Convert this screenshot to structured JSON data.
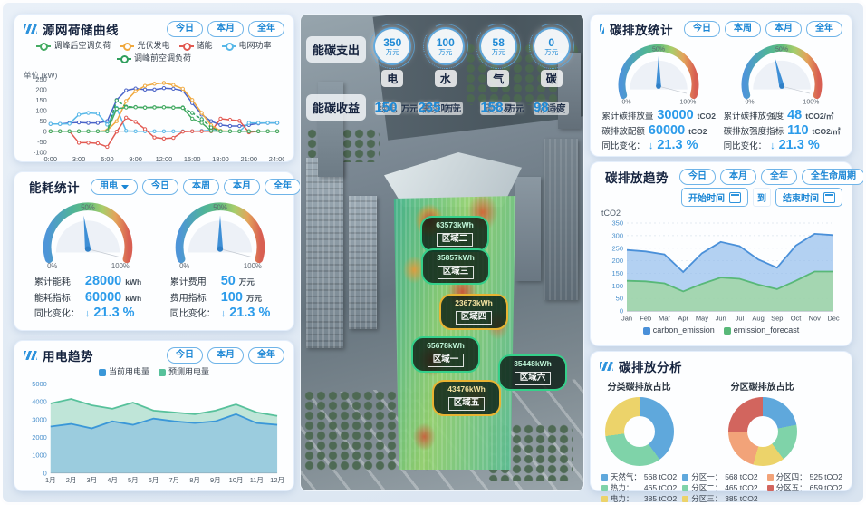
{
  "left": {
    "curve_panel": {
      "title": "源网荷储曲线",
      "buttons": [
        "今日",
        "本月",
        "全年"
      ],
      "unit_label": "单位 (kW)"
    },
    "energy_panel": {
      "title": "能耗统计",
      "dropdown_label": "用电",
      "buttons": [
        "今日",
        "本周",
        "本月",
        "全年"
      ],
      "gauges": [
        {
          "rows": [
            {
              "label": "累计能耗",
              "value": "28000",
              "unit": "kWh"
            },
            {
              "label": "能耗指标",
              "value": "60000",
              "unit": "kWh"
            },
            {
              "label": "同比变化：",
              "arrow": "↓",
              "value": "21.3 %",
              "unit": ""
            }
          ]
        },
        {
          "rows": [
            {
              "label": "累计费用",
              "value": "50",
              "unit": "万元"
            },
            {
              "label": "费用指标",
              "value": "100",
              "unit": "万元"
            },
            {
              "label": "同比变化：",
              "arrow": "↓",
              "value": "21.3 %",
              "unit": ""
            }
          ]
        }
      ]
    },
    "trend_panel": {
      "title": "用电趋势",
      "buttons": [
        "今日",
        "本月",
        "全年"
      ]
    }
  },
  "center": {
    "expense_label": "能碳支出",
    "expense_items": [
      {
        "value": "350",
        "unit": "万元",
        "name": "电"
      },
      {
        "value": "100",
        "unit": "万元",
        "name": "水"
      },
      {
        "value": "58",
        "unit": "万元",
        "name": "气"
      },
      {
        "value": "0",
        "unit": "万元",
        "name": "碳"
      }
    ],
    "revenue_label": "能碳收益",
    "revenue_items": [
      {
        "value": "150",
        "unit": "万元",
        "name": "绿电"
      },
      {
        "value": "235",
        "unit": "万元",
        "name": "需求响应"
      },
      {
        "value": "158",
        "unit": "万元",
        "name": "碳交易"
      },
      {
        "value": "98",
        "unit": "%",
        "name": "舒适度"
      }
    ],
    "zones": [
      {
        "value": "63573kWh",
        "name": "区域二"
      },
      {
        "value": "35857kWh",
        "name": "区域三"
      },
      {
        "value": "23673kWh",
        "name": "区域四"
      },
      {
        "value": "65678kWh",
        "name": "区域一"
      },
      {
        "value": "35448kWh",
        "name": "区域六"
      },
      {
        "value": "43476kWh",
        "name": "区域五"
      }
    ]
  },
  "right": {
    "stats_panel": {
      "title": "碳排放统计",
      "buttons": [
        "今日",
        "本周",
        "本月",
        "全年"
      ],
      "gauges": [
        {
          "rows": [
            {
              "label": "累计碳排放量",
              "value": "30000",
              "unit": "tCO2"
            },
            {
              "label": "碳排放配额",
              "value": "60000",
              "unit": "tCO2"
            },
            {
              "label": "同比变化：",
              "arrow": "↓",
              "value": "21.3 %",
              "unit": ""
            }
          ]
        },
        {
          "rows": [
            {
              "label": "累计碳排放强度",
              "value": "48",
              "unit": "tCO2/㎡"
            },
            {
              "label": "碳排放强度指标",
              "value": "110",
              "unit": "tCO2/㎡"
            },
            {
              "label": "同比变化：",
              "arrow": "↓",
              "value": "21.3 %",
              "unit": ""
            }
          ]
        }
      ]
    },
    "trend_panel": {
      "title": "碳排放趋势",
      "buttons": [
        "今日",
        "本月",
        "全年",
        "全生命周期"
      ],
      "start_label": "开始时间",
      "to_label": "到",
      "end_label": "结束时间",
      "ylabel": "tCO2"
    },
    "analysis_panel": {
      "title": "碳排放分析",
      "donut_titles": [
        "分类碳排放占比",
        "分区碳排放占比"
      ]
    }
  },
  "gauge_scale": [
    "0%",
    "50%",
    "100%"
  ],
  "chart_data": [
    {
      "id": "source_curve",
      "type": "line",
      "title": "源网荷储曲线",
      "ylabel": "单位 (kW)",
      "ylim": [
        -100,
        250
      ],
      "yticks": [
        -100,
        -50,
        0,
        50,
        100,
        150,
        200,
        250
      ],
      "x_tick_labels": [
        "0:00",
        "3:00",
        "6:00",
        "9:00",
        "12:00",
        "15:00",
        "18:00",
        "21:00",
        "24:00"
      ],
      "x_tick_step": 3,
      "series": [
        {
          "name": "调峰后空调负荷",
          "color": "#45ab63",
          "marker": true,
          "z": 6,
          "values": [
            0,
            0,
            0,
            0,
            0,
            0,
            0,
            108,
            114,
            115,
            113,
            114,
            115,
            113,
            112,
            60,
            40,
            2,
            0,
            0,
            0,
            0,
            0,
            0,
            0
          ]
        },
        {
          "name": "光伏发电",
          "color": "#f0a93f",
          "marker": true,
          "z": 4,
          "values": [
            0,
            0,
            0,
            0,
            0,
            0,
            4,
            48,
            145,
            192,
            218,
            228,
            232,
            222,
            204,
            150,
            88,
            28,
            2,
            0,
            0,
            0,
            0,
            0,
            0
          ]
        },
        {
          "name": "储能",
          "color": "#e25a52",
          "marker": true,
          "z": 3,
          "values": [
            0,
            0,
            0,
            -55,
            -55,
            -58,
            -75,
            -2,
            65,
            45,
            10,
            -30,
            -35,
            -32,
            -2,
            0,
            0,
            0,
            60,
            55,
            50,
            -5,
            0,
            0,
            0
          ]
        },
        {
          "name": "电网功率",
          "color": "#58b8e8",
          "marker": true,
          "z": 2,
          "values": [
            35,
            35,
            36,
            80,
            88,
            85,
            32,
            112,
            2,
            0,
            0,
            0,
            0,
            0,
            0,
            0,
            2,
            5,
            0,
            0,
            0,
            40,
            40,
            40,
            40
          ]
        },
        {
          "name": "调峰前空调负荷",
          "color": "#2f9e5c",
          "marker": true,
          "dash": true,
          "z": 5,
          "values": [
            0,
            0,
            0,
            0,
            0,
            0,
            0,
            148,
            118,
            116,
            114,
            115,
            115,
            114,
            114,
            88,
            58,
            18,
            0,
            0,
            0,
            0,
            0,
            0,
            0
          ]
        },
        {
          "name": "unlabeled_blue",
          "color": "#4a63c8",
          "marker": true,
          "legend": false,
          "z": 1,
          "values": [
            35,
            35,
            40,
            42,
            40,
            40,
            48,
            150,
            196,
            205,
            200,
            200,
            207,
            204,
            195,
            135,
            80,
            48,
            30,
            25,
            25,
            30,
            38,
            40,
            40
          ]
        }
      ]
    },
    {
      "id": "power_trend",
      "type": "area",
      "title": "用电趋势",
      "categories": [
        "1月",
        "2月",
        "3月",
        "4月",
        "5月",
        "6月",
        "7月",
        "8月",
        "9月",
        "10月",
        "11月",
        "12月"
      ],
      "ylim": [
        0,
        5000
      ],
      "yticks": [
        0,
        1000,
        2000,
        3000,
        4000,
        5000
      ],
      "legend_icon": "square",
      "series": [
        {
          "name": "当前用电量",
          "color": "#3a97d8",
          "fill": "rgba(120,180,228,0.5)",
          "z": 2,
          "values": [
            2600,
            2750,
            2500,
            2900,
            2700,
            3050,
            2900,
            2800,
            2900,
            3300,
            2800,
            2700
          ]
        },
        {
          "name": "预测用电量",
          "color": "#57c19b",
          "fill": "rgba(150,212,190,0.6)",
          "z": 1,
          "values": [
            3900,
            4150,
            3800,
            3600,
            3950,
            3500,
            3400,
            3300,
            3500,
            3850,
            3400,
            3200
          ]
        }
      ]
    },
    {
      "id": "carbon_trend",
      "type": "area",
      "title": "碳排放趋势",
      "ylabel": "tCO2",
      "categories": [
        "Jan",
        "Feb",
        "Mar",
        "Apr",
        "May",
        "Jun",
        "Jul",
        "Aug",
        "Sep",
        "Oct",
        "Nov",
        "Dec"
      ],
      "ylim": [
        0,
        350
      ],
      "yticks": [
        0,
        50,
        100,
        150,
        200,
        250,
        300,
        350
      ],
      "grid": true,
      "legend_icon": "square",
      "series": [
        {
          "name": "carbon_emission",
          "color": "#4a90d9",
          "fill": "rgba(140,185,235,0.65)",
          "z": 1,
          "values": [
            243,
            237,
            225,
            155,
            230,
            275,
            258,
            205,
            172,
            260,
            307,
            302
          ]
        },
        {
          "name": "emission_forecast",
          "color": "#58b878",
          "fill": "rgba(160,215,160,0.8)",
          "z": 2,
          "values": [
            120,
            118,
            110,
            78,
            108,
            133,
            128,
            105,
            87,
            120,
            157,
            157
          ]
        }
      ]
    },
    {
      "id": "category_donut",
      "type": "pie",
      "title": "分类碳排放占比",
      "unit": "tCO2",
      "slices": [
        {
          "label": "天然气",
          "value": 568,
          "color": "#5fa8dc"
        },
        {
          "label": "热力",
          "value": 465,
          "color": "#7fd3a9"
        },
        {
          "label": "电力",
          "value": 385,
          "color": "#ecd36a"
        }
      ]
    },
    {
      "id": "zone_donut",
      "type": "pie",
      "title": "分区碳排放占比",
      "unit": "tCO2",
      "slices": [
        {
          "label": "分区一",
          "value": 568,
          "color": "#5fa8dc"
        },
        {
          "label": "分区二",
          "value": 465,
          "color": "#7fd3a9"
        },
        {
          "label": "分区三",
          "value": 385,
          "color": "#ecd36a"
        },
        {
          "label": "分区四",
          "value": 525,
          "color": "#f2a379"
        },
        {
          "label": "分区五",
          "value": 659,
          "color": "#d2655e"
        }
      ]
    }
  ]
}
